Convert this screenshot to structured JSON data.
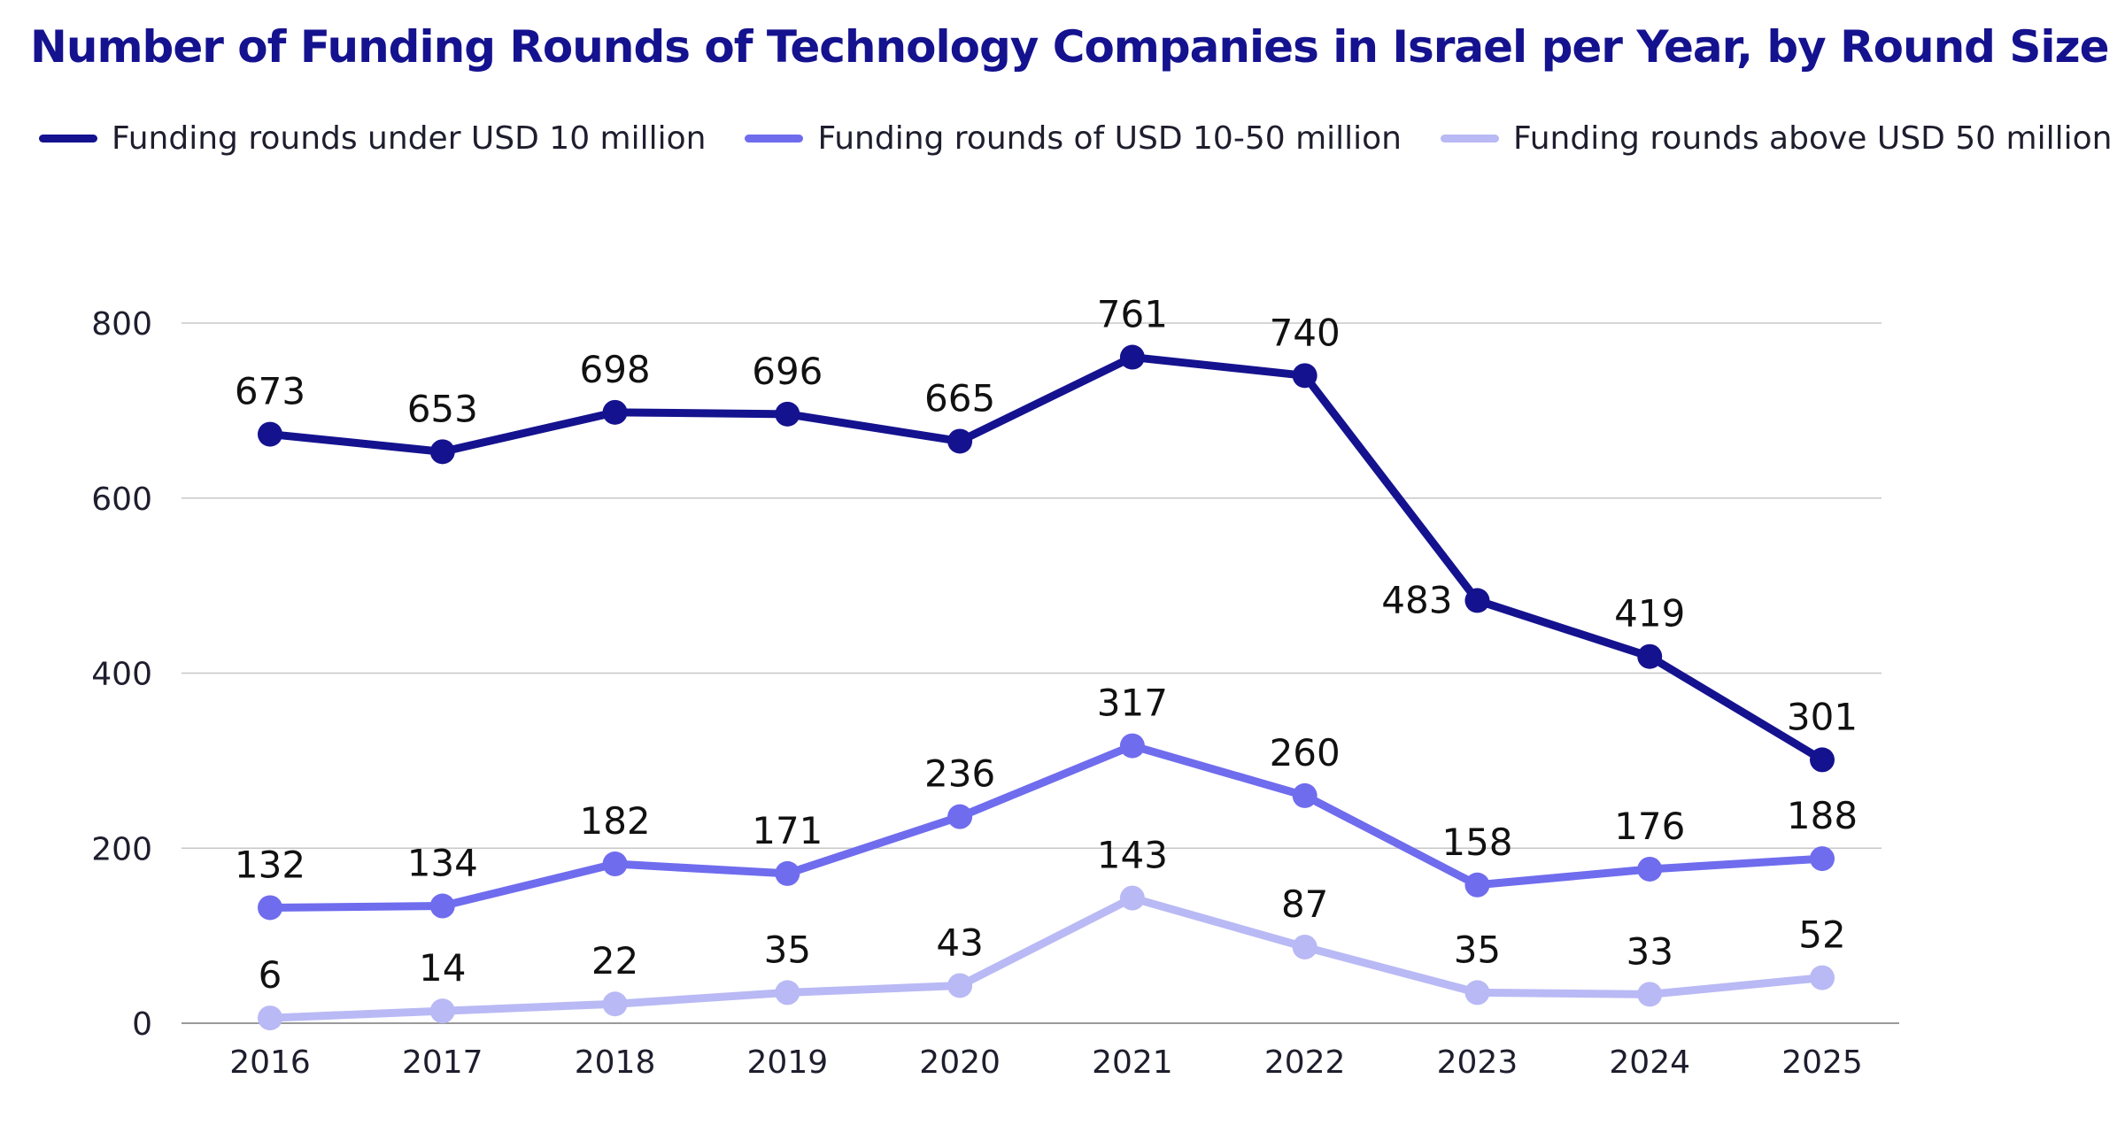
{
  "chart_data": {
    "type": "line",
    "title": "Number of Funding Rounds of Technology Companies in Israel per Year, by Round Size",
    "xlabel": "",
    "ylabel": "",
    "ylim": [
      0,
      800
    ],
    "yticks": [
      0,
      200,
      400,
      600,
      800
    ],
    "grid": true,
    "legend_position": "top",
    "x": [
      "2016",
      "2017",
      "2018",
      "2019",
      "2020",
      "2021",
      "2022",
      "2023",
      "2024",
      "2025"
    ],
    "series": [
      {
        "name": "Funding rounds under USD 10 million",
        "color": "#15128f",
        "values": [
          673,
          653,
          698,
          696,
          665,
          761,
          740,
          483,
          419,
          301
        ],
        "labels": [
          "673",
          "653",
          "698",
          "696",
          "665",
          "761",
          "740",
          "483",
          "419",
          "301"
        ]
      },
      {
        "name": "Funding rounds of USD 10-50 million",
        "color": "#6f6cee",
        "values": [
          132,
          134,
          182,
          171,
          236,
          317,
          260,
          158,
          176,
          188
        ],
        "labels": [
          "132",
          "134",
          "182",
          "171",
          "236",
          "317",
          "260",
          "158",
          "176",
          "188"
        ]
      },
      {
        "name": "Funding rounds above USD 50 million",
        "color": "#b9b9f5",
        "values": [
          6,
          14,
          22,
          35,
          43,
          143,
          87,
          35,
          33,
          52
        ],
        "labels": [
          "6",
          "14",
          "22",
          "35",
          "43",
          "143",
          "87",
          "35",
          "33",
          "52"
        ]
      }
    ]
  }
}
